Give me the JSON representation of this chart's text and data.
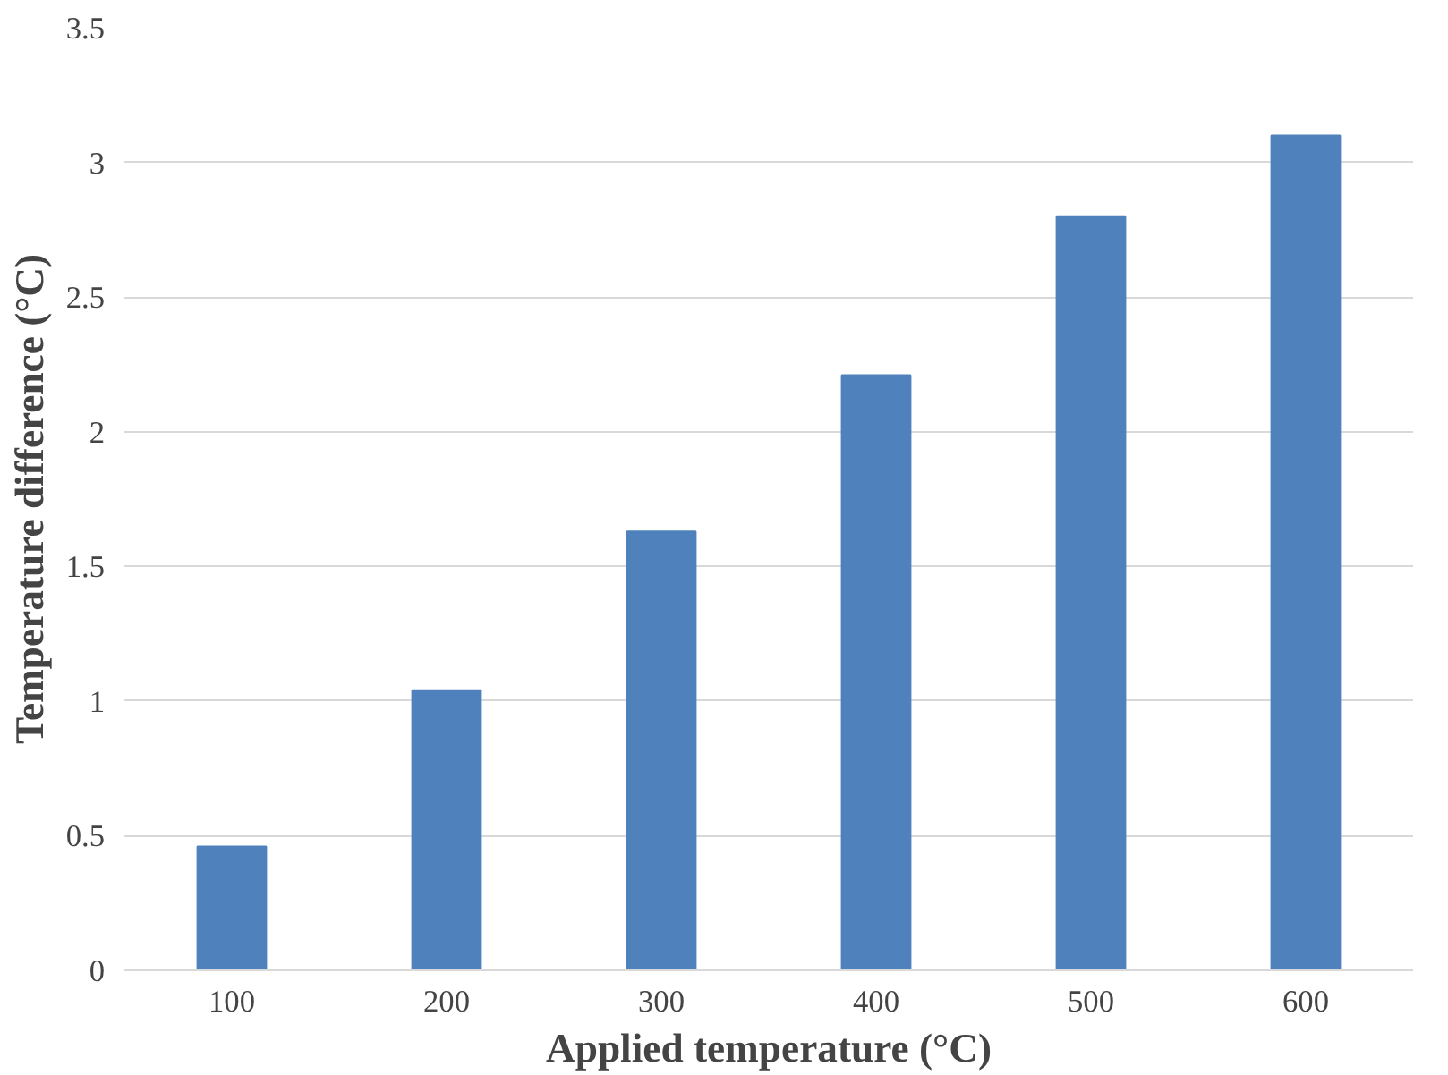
{
  "chart_data": {
    "type": "bar",
    "xlabel": "Applied temperature (°C)",
    "ylabel": "Temperature difference (°C)",
    "categories": [
      "100",
      "200",
      "300",
      "400",
      "500",
      "600"
    ],
    "values": [
      0.46,
      1.04,
      1.63,
      2.21,
      2.8,
      3.1
    ],
    "color": "#4f81bd",
    "ylim": [
      0,
      3.5
    ],
    "yticks": [
      0,
      0.5,
      1,
      1.5,
      2,
      2.5,
      3,
      3.5
    ],
    "grid": "y"
  }
}
